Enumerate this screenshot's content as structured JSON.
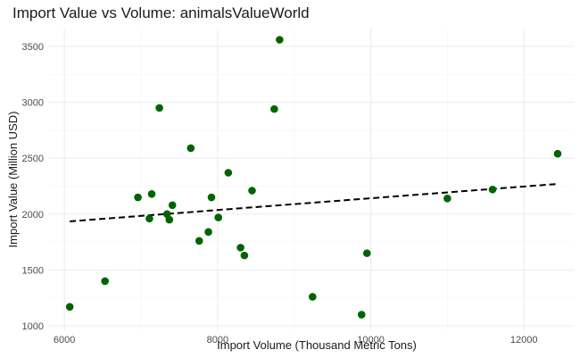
{
  "chart_data": {
    "type": "scatter",
    "title": "Import Value vs Volume: animalsValueWorld",
    "xlabel": "Import Volume (Thousand Metric Tons)",
    "ylabel": "Import Value (Million USD)",
    "xlim": [
      5800,
      12650
    ],
    "ylim": [
      960,
      3660
    ],
    "x_ticks": [
      6000,
      8000,
      10000,
      12000
    ],
    "y_ticks": [
      1000,
      1500,
      2000,
      2500,
      3000,
      3500
    ],
    "grid": true,
    "point_color": "#006400",
    "trend_color": "#000000",
    "points": [
      {
        "x": 6070,
        "y": 1170
      },
      {
        "x": 6530,
        "y": 1400
      },
      {
        "x": 6960,
        "y": 2150
      },
      {
        "x": 7110,
        "y": 1960
      },
      {
        "x": 7140,
        "y": 2180
      },
      {
        "x": 7240,
        "y": 2950
      },
      {
        "x": 7340,
        "y": 2000
      },
      {
        "x": 7370,
        "y": 1950
      },
      {
        "x": 7410,
        "y": 2080
      },
      {
        "x": 7650,
        "y": 2590
      },
      {
        "x": 7760,
        "y": 1760
      },
      {
        "x": 7880,
        "y": 1840
      },
      {
        "x": 7920,
        "y": 2150
      },
      {
        "x": 8010,
        "y": 1970
      },
      {
        "x": 8140,
        "y": 2370
      },
      {
        "x": 8300,
        "y": 1700
      },
      {
        "x": 8350,
        "y": 1630
      },
      {
        "x": 8450,
        "y": 2210
      },
      {
        "x": 8740,
        "y": 2940
      },
      {
        "x": 8810,
        "y": 3560
      },
      {
        "x": 9240,
        "y": 1260
      },
      {
        "x": 9880,
        "y": 1100
      },
      {
        "x": 9950,
        "y": 1650
      },
      {
        "x": 11000,
        "y": 2140
      },
      {
        "x": 11590,
        "y": 2220
      },
      {
        "x": 12440,
        "y": 2540
      }
    ],
    "trend": {
      "type": "linear",
      "x": [
        6070,
        12440
      ],
      "y": [
        1935,
        2270
      ]
    }
  }
}
